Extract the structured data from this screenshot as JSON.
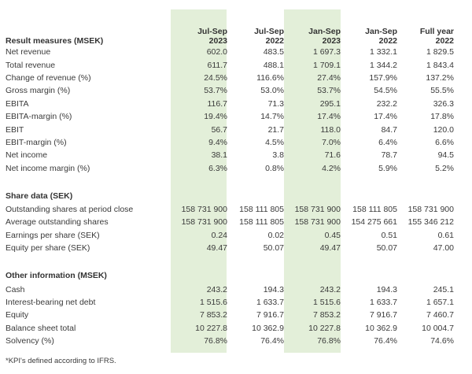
{
  "header": {
    "title": "Result measures (MSEK)",
    "columns": [
      {
        "line1": "Jul-Sep",
        "line2": "2023"
      },
      {
        "line1": "Jul-Sep",
        "line2": "2022"
      },
      {
        "line1": "Jan-Sep",
        "line2": "2023"
      },
      {
        "line1": "Jan-Sep",
        "line2": "2022"
      },
      {
        "line1": "Full year",
        "line2": "2022"
      }
    ]
  },
  "result_rows": [
    {
      "label": "Net revenue",
      "v": [
        "602.0",
        "483.5",
        "1 697.3",
        "1 332.1",
        "1 829.5"
      ]
    },
    {
      "label": "Total revenue",
      "v": [
        "611.7",
        "488.1",
        "1 709.1",
        "1 344.2",
        "1 843.4"
      ]
    },
    {
      "label": "Change of revenue (%)",
      "v": [
        "24.5%",
        "116.6%",
        "27.4%",
        "157.9%",
        "137.2%"
      ]
    },
    {
      "label": "Gross margin (%)",
      "v": [
        "53.7%",
        "53.0%",
        "53.7%",
        "54.5%",
        "55.5%"
      ]
    },
    {
      "label": "EBITA",
      "v": [
        "116.7",
        "71.3",
        "295.1",
        "232.2",
        "326.3"
      ]
    },
    {
      "label": "EBITA-margin (%)",
      "v": [
        "19.4%",
        "14.7%",
        "17.4%",
        "17.4%",
        "17.8%"
      ]
    },
    {
      "label": "EBIT",
      "v": [
        "56.7",
        "21.7",
        "118.0",
        "84.7",
        "120.0"
      ]
    },
    {
      "label": "EBIT-margin (%)",
      "v": [
        "9.4%",
        "4.5%",
        "7.0%",
        "6.4%",
        "6.6%"
      ]
    },
    {
      "label": "Net income",
      "v": [
        "38.1",
        "3.8",
        "71.6",
        "78.7",
        "94.5"
      ]
    },
    {
      "label": "Net income margin (%)",
      "v": [
        "6.3%",
        "0.8%",
        "4.2%",
        "5.9%",
        "5.2%"
      ]
    }
  ],
  "share_section": "Share data (SEK)",
  "share_rows": [
    {
      "label": "Outstanding shares at period close",
      "v": [
        "158 731 900",
        "158 111 805",
        "158 731 900",
        "158 111 805",
        "158 731 900"
      ]
    },
    {
      "label": "Average outstanding shares",
      "v": [
        "158 731 900",
        "158 111 805",
        "158 731 900",
        "154 275 661",
        "155 346 212"
      ]
    },
    {
      "label": "Earnings per share (SEK)",
      "v": [
        "0.24",
        "0.02",
        "0.45",
        "0.51",
        "0.61"
      ]
    },
    {
      "label": "Equity per share (SEK)",
      "v": [
        "49.47",
        "50.07",
        "49.47",
        "50.07",
        "47.00"
      ]
    }
  ],
  "other_section": "Other information (MSEK)",
  "other_rows": [
    {
      "label": "Cash",
      "v": [
        "243.2",
        "194.3",
        "243.2",
        "194.3",
        "245.1"
      ]
    },
    {
      "label": "Interest-bearing net debt",
      "v": [
        "1 515.6",
        "1 633.7",
        "1 515.6",
        "1 633.7",
        "1 657.1"
      ]
    },
    {
      "label": "Equity",
      "v": [
        "7 853.2",
        "7 916.7",
        "7 853.2",
        "7 916.7",
        "7 460.7"
      ]
    },
    {
      "label": "Balance sheet total",
      "v": [
        "10 227.8",
        "10 362.9",
        "10 227.8",
        "10 362.9",
        "10 004.7"
      ]
    },
    {
      "label": "Solvency (%)",
      "v": [
        "76.8%",
        "76.4%",
        "76.8%",
        "76.4%",
        "74.6%"
      ]
    }
  ],
  "footnote": "*KPI's defined according to IFRS.",
  "colors": {
    "highlight": "#e3efd9",
    "text": "#3a3a3a"
  }
}
